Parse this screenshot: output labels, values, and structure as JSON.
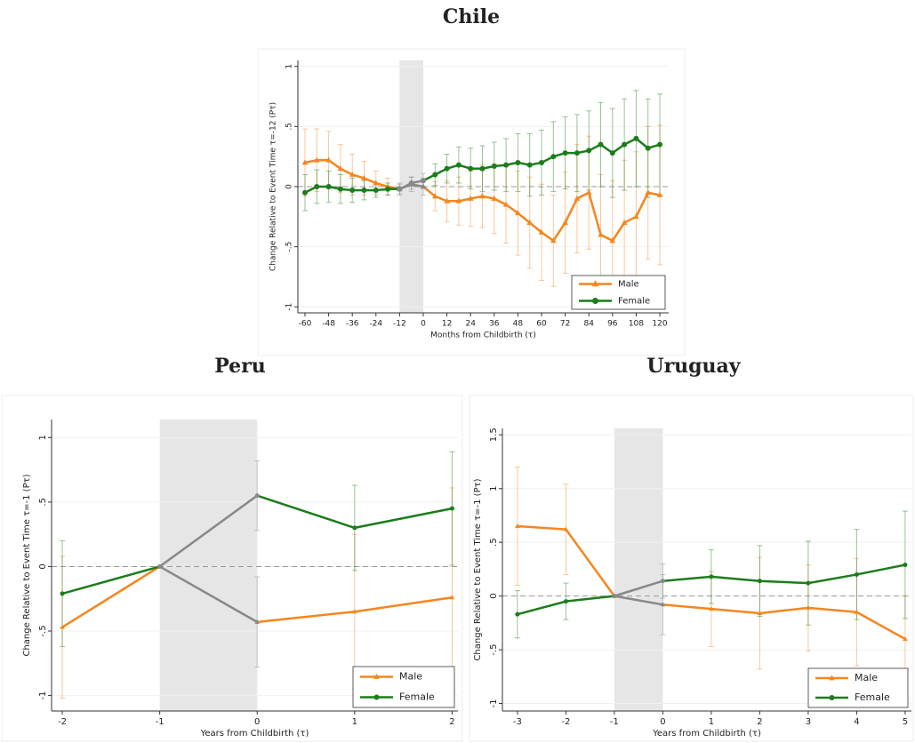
{
  "chart_data": [
    {
      "type": "line",
      "title": "Chile",
      "x_label": "Months from Childbirth (τ)",
      "y_label": "Change Relative to Event Time τ=-12 (Pτ)",
      "x": [
        -60,
        -54,
        -48,
        -42,
        -36,
        -30,
        -24,
        -18,
        -12,
        -6,
        0,
        6,
        12,
        18,
        24,
        30,
        36,
        42,
        48,
        54,
        60,
        66,
        72,
        78,
        84,
        90,
        96,
        102,
        108,
        114,
        120
      ],
      "series": [
        {
          "name": "Male",
          "color": "#f5861f",
          "marker": "triangle",
          "values": [
            0.2,
            0.22,
            0.22,
            0.15,
            0.1,
            0.07,
            0.03,
            0.0,
            -0.02,
            0.02,
            0.0,
            -0.08,
            -0.12,
            -0.12,
            -0.1,
            -0.08,
            -0.1,
            -0.15,
            -0.22,
            -0.3,
            -0.38,
            -0.45,
            -0.3,
            -0.1,
            -0.05,
            -0.4,
            -0.45,
            -0.3,
            -0.25,
            -0.05,
            -0.07
          ],
          "errors": [
            0.28,
            0.26,
            0.24,
            0.2,
            0.17,
            0.14,
            0.1,
            0.07,
            0.05,
            0.06,
            0.07,
            0.12,
            0.17,
            0.2,
            0.23,
            0.26,
            0.29,
            0.32,
            0.35,
            0.38,
            0.4,
            0.38,
            0.42,
            0.45,
            0.47,
            0.5,
            0.5,
            0.52,
            0.54,
            0.55,
            0.58
          ]
        },
        {
          "name": "Female",
          "color": "#1b7d1b",
          "marker": "circle",
          "values": [
            -0.05,
            0.0,
            0.0,
            -0.02,
            -0.03,
            -0.03,
            -0.03,
            -0.02,
            -0.02,
            0.03,
            0.05,
            0.1,
            0.15,
            0.18,
            0.15,
            0.15,
            0.17,
            0.18,
            0.2,
            0.18,
            0.2,
            0.25,
            0.28,
            0.28,
            0.3,
            0.35,
            0.28,
            0.35,
            0.4,
            0.32,
            0.35
          ],
          "errors": [
            0.15,
            0.14,
            0.13,
            0.12,
            0.1,
            0.08,
            0.06,
            0.05,
            0.04,
            0.05,
            0.06,
            0.09,
            0.12,
            0.15,
            0.17,
            0.19,
            0.2,
            0.22,
            0.24,
            0.26,
            0.27,
            0.29,
            0.3,
            0.32,
            0.33,
            0.35,
            0.37,
            0.38,
            0.4,
            0.41,
            0.42
          ]
        }
      ],
      "shade": [
        -12,
        0
      ],
      "shade_line_color": "#888888",
      "xlim": [
        -63.6,
        124.5
      ],
      "xticks": [
        -60,
        -48,
        -36,
        -24,
        -12,
        0,
        12,
        24,
        36,
        48,
        60,
        72,
        84,
        96,
        108,
        120
      ],
      "ylim": [
        -1.05,
        1.05
      ],
      "yticks": [
        -1,
        {
          "value": -0.5,
          "label": "-.5"
        },
        0,
        {
          "value": 0.5,
          "label": ".5"
        },
        1
      ],
      "grid": true,
      "legend": "bottom-right"
    },
    {
      "type": "line",
      "title": "Peru",
      "x_label": "Years from Childbirth (τ)",
      "y_label": "Change Relative to Event Time τ=-1 (Pτ)",
      "x": [
        -2,
        -1,
        0,
        1,
        2
      ],
      "series": [
        {
          "name": "Male",
          "color": "#f5861f",
          "marker": "triangle",
          "values": [
            -0.47,
            0,
            -0.43,
            -0.35,
            -0.24
          ],
          "errors": [
            0.55,
            0,
            0.35,
            0.6,
            0.85
          ]
        },
        {
          "name": "Female",
          "color": "#1b7d1b",
          "marker": "circle",
          "values": [
            -0.21,
            0,
            0.55,
            0.3,
            0.45
          ],
          "errors": [
            0.41,
            0,
            0.27,
            0.33,
            0.44
          ]
        }
      ],
      "shade": [
        -1,
        0
      ],
      "shade_line_color": "#888888",
      "xlim": [
        -2.11,
        2.06
      ],
      "xticks": [
        -2,
        -1,
        0,
        1,
        2
      ],
      "ylim": [
        -1.12,
        1.14
      ],
      "yticks": [
        -1,
        {
          "value": -0.5,
          "label": "-.5"
        },
        0,
        {
          "value": 0.5,
          "label": ".5"
        },
        1
      ],
      "grid": true,
      "legend": "bottom-right"
    },
    {
      "type": "line",
      "title": "Uruguay",
      "x_label": "Years from Childbirth (τ)",
      "y_label": "Change Relative to Event Time τ=-1 (Pτ)",
      "x": [
        -3,
        -2,
        -1,
        0,
        1,
        2,
        3,
        4,
        5
      ],
      "series": [
        {
          "name": "Male",
          "color": "#f5861f",
          "marker": "triangle",
          "values": [
            0.65,
            0.62,
            0,
            -0.08,
            -0.12,
            -0.16,
            -0.11,
            -0.15,
            -0.4
          ],
          "errors": [
            0.55,
            0.42,
            0,
            0.28,
            0.35,
            0.52,
            0.4,
            0.5,
            0.4
          ]
        },
        {
          "name": "Female",
          "color": "#1b7d1b",
          "marker": "circle",
          "values": [
            -0.17,
            -0.05,
            0,
            0.14,
            0.18,
            0.14,
            0.12,
            0.2,
            0.29
          ],
          "errors": [
            0.22,
            0.17,
            0,
            0.16,
            0.25,
            0.33,
            0.39,
            0.42,
            0.5
          ]
        }
      ],
      "shade": [
        -1,
        0
      ],
      "shade_line_color": "#888888",
      "xlim": [
        -3.31,
        5.13
      ],
      "xticks": [
        -3,
        -2,
        -1,
        0,
        1,
        2,
        3,
        4,
        5
      ],
      "ylim": [
        -1.07,
        1.56
      ],
      "yticks": [
        -1,
        {
          "value": -0.5,
          "label": "-.5"
        },
        0,
        {
          "value": 0.5,
          "label": ".5"
        },
        1,
        {
          "value": 1.5,
          "label": "1.5"
        }
      ],
      "grid": true,
      "legend": "bottom-right"
    }
  ]
}
